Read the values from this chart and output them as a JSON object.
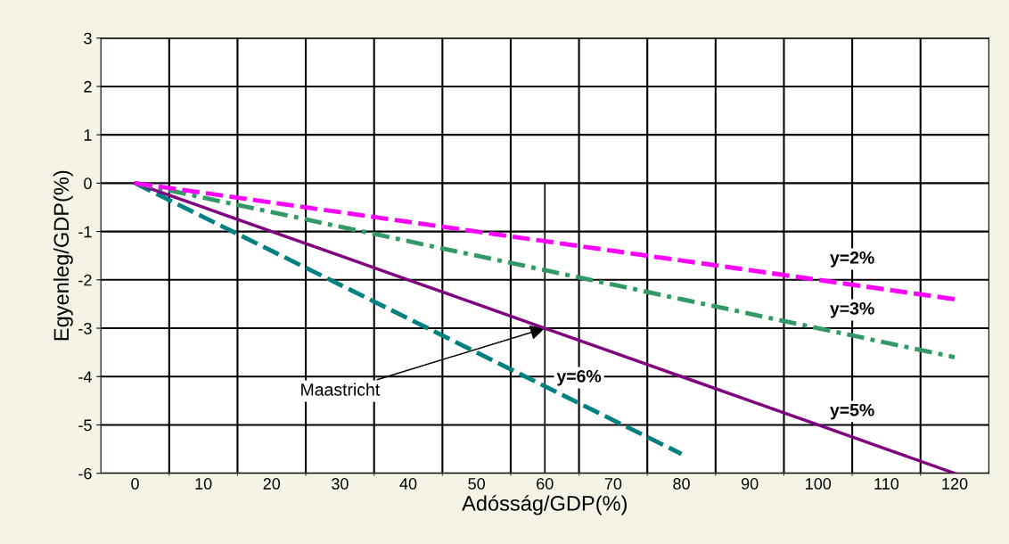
{
  "chart_data": {
    "type": "line",
    "xlabel": "Adósság/GDP(%)",
    "ylabel": "Egyenleg/GDP(%)",
    "categories": [
      "0",
      "10",
      "20",
      "30",
      "40",
      "50",
      "60",
      "70",
      "80",
      "90",
      "100",
      "110",
      "120"
    ],
    "series": [
      {
        "name": "y=2%",
        "color": "#ff00ff",
        "line_style": "dashed",
        "values": [
          0,
          -0.2,
          -0.4,
          -0.6,
          -0.8,
          -1.0,
          -1.2,
          -1.4,
          -1.6,
          -1.8,
          -2.0,
          -2.2,
          -2.4
        ]
      },
      {
        "name": "y=3%",
        "color": "#339966",
        "line_style": "dashdot",
        "values": [
          0,
          -0.3,
          -0.6,
          -0.9,
          -1.2,
          -1.5,
          -1.8,
          -2.1,
          -2.4,
          -2.7,
          -3.0,
          -3.3,
          -3.6
        ]
      },
      {
        "name": "y=5%",
        "color": "#800080",
        "line_style": "solid",
        "values": [
          0,
          -0.5,
          -1.0,
          -1.5,
          -2.0,
          -2.5,
          -3.0,
          -3.5,
          -4.0,
          -4.5,
          -5.0,
          -5.5,
          -6.0
        ]
      },
      {
        "name": "y=6%",
        "color": "#008080",
        "line_style": "dashed",
        "values": [
          0,
          -0.7,
          -1.4,
          -2.1,
          -2.8,
          -3.5,
          -4.2,
          -4.9,
          -5.6,
          null,
          null,
          null,
          null
        ]
      }
    ],
    "ylim": [
      -6,
      3
    ],
    "yticks": [
      -6,
      -5,
      -4,
      -3,
      -2,
      -1,
      0,
      1,
      2,
      3
    ],
    "grid": true,
    "marker": "none",
    "ref_lines": [
      {
        "axis": "x",
        "value": "60",
        "color": "#000000"
      }
    ],
    "annotations": [
      {
        "text": "Maastricht",
        "x": "60",
        "y": -3
      }
    ]
  }
}
